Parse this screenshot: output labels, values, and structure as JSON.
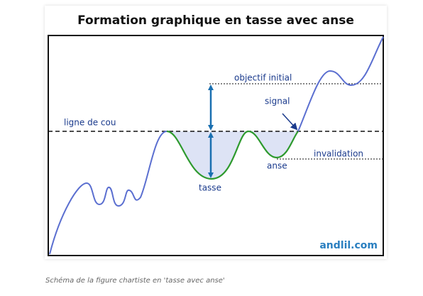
{
  "header": {
    "title": "Formation graphique  en tasse avec anse"
  },
  "labels": {
    "neckline": "ligne de cou",
    "target": "objectif initial",
    "signal": "signal",
    "invalidation": "invalidation",
    "handle": "anse",
    "cup": "tasse"
  },
  "watermark": "andlil.com",
  "caption": "Schéma de la figure chartiste en 'tasse avec anse'"
}
